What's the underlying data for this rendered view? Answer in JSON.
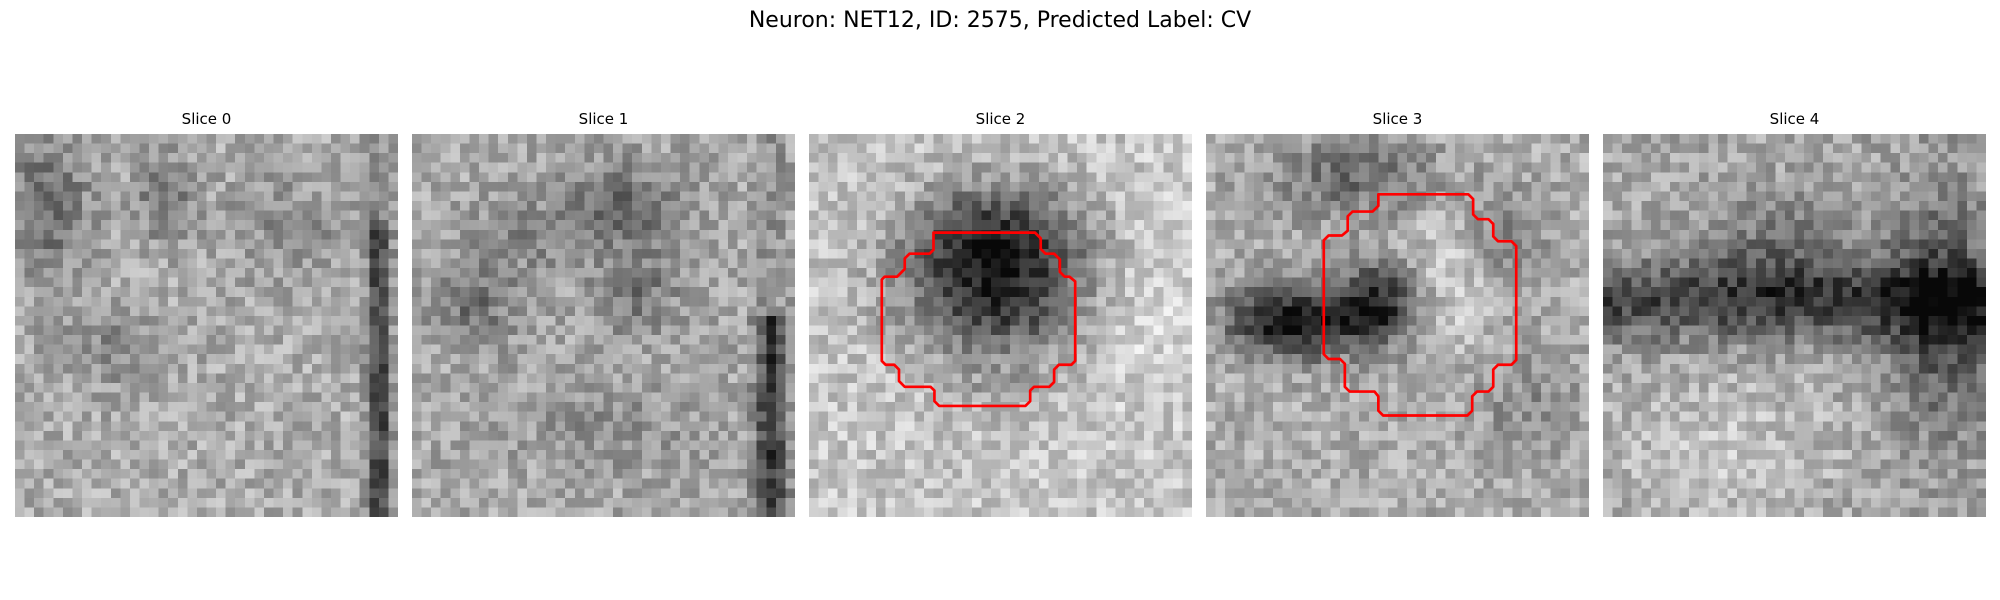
{
  "figure": {
    "title": "Neuron: NET12, ID: 2575, Predicted Label: CV"
  },
  "panels": [
    {
      "title": "Slice 0",
      "seed": 11,
      "pattern": "slice0",
      "contour": false
    },
    {
      "title": "Slice 1",
      "seed": 23,
      "pattern": "slice1",
      "contour": false
    },
    {
      "title": "Slice 2",
      "seed": 37,
      "pattern": "slice2",
      "contour": true
    },
    {
      "title": "Slice 3",
      "seed": 51,
      "pattern": "slice3",
      "contour": true
    },
    {
      "title": "Slice 4",
      "seed": 67,
      "pattern": "slice4",
      "contour": false
    }
  ],
  "colors": {
    "contour": "#ff0000",
    "colormap": "grayscale"
  }
}
